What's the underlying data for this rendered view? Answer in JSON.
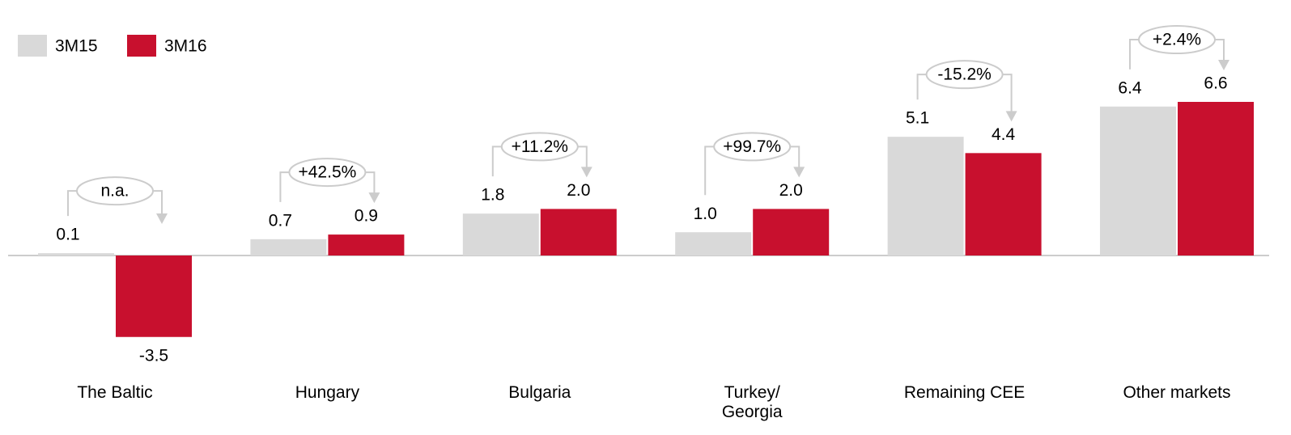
{
  "chart_data": {
    "type": "bar",
    "categories": [
      "The Baltic",
      "Hungary",
      "Bulgaria",
      "Turkey/\nGeorgia",
      "Remaining CEE",
      "Other markets"
    ],
    "series": [
      {
        "name": "3M15",
        "color": "#d9d9d9",
        "values": [
          0.1,
          0.7,
          1.8,
          1.0,
          5.1,
          6.4
        ]
      },
      {
        "name": "3M16",
        "color": "#c8102e",
        "values": [
          -3.5,
          0.9,
          2.0,
          2.0,
          4.4,
          6.6
        ]
      }
    ],
    "value_labels": [
      [
        "0.1",
        "0.7",
        "1.8",
        "1.0",
        "5.1",
        "6.4"
      ],
      [
        "-3.5",
        "0.9",
        "2.0",
        "2.0",
        "4.4",
        "6.6"
      ]
    ],
    "changes": [
      "n.a.",
      "+42.5%",
      "+11.2%",
      "+99.7%",
      "-15.2%",
      "+2.4%"
    ],
    "legend": "top-left"
  }
}
